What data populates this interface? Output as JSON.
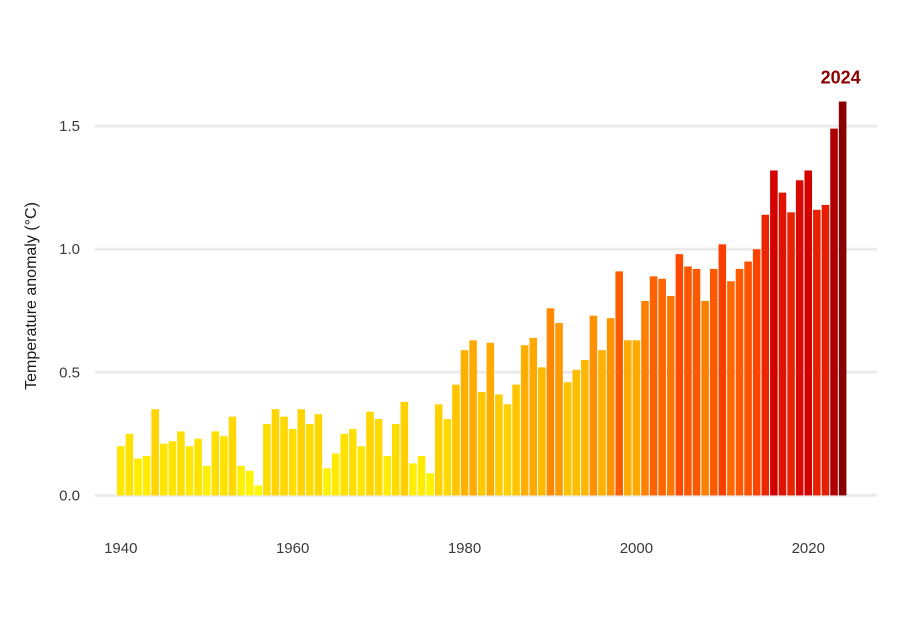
{
  "chart_data": {
    "type": "bar",
    "title": "",
    "xlabel": "",
    "ylabel": "Temperature anomaly (°C)",
    "x": [
      1940,
      1941,
      1942,
      1943,
      1944,
      1945,
      1946,
      1947,
      1948,
      1949,
      1950,
      1951,
      1952,
      1953,
      1954,
      1955,
      1956,
      1957,
      1958,
      1959,
      1960,
      1961,
      1962,
      1963,
      1964,
      1965,
      1966,
      1967,
      1968,
      1969,
      1970,
      1971,
      1972,
      1973,
      1974,
      1975,
      1976,
      1977,
      1978,
      1979,
      1980,
      1981,
      1982,
      1983,
      1984,
      1985,
      1986,
      1987,
      1988,
      1989,
      1990,
      1991,
      1992,
      1993,
      1994,
      1995,
      1996,
      1997,
      1998,
      1999,
      2000,
      2001,
      2002,
      2003,
      2004,
      2005,
      2006,
      2007,
      2008,
      2009,
      2010,
      2011,
      2012,
      2013,
      2014,
      2015,
      2016,
      2017,
      2018,
      2019,
      2020,
      2021,
      2022,
      2023,
      2024
    ],
    "values": [
      0.2,
      0.25,
      0.15,
      0.16,
      0.35,
      0.21,
      0.22,
      0.26,
      0.2,
      0.23,
      0.12,
      0.26,
      0.24,
      0.32,
      0.12,
      0.1,
      0.04,
      0.29,
      0.35,
      0.32,
      0.27,
      0.35,
      0.29,
      0.33,
      0.11,
      0.17,
      0.25,
      0.27,
      0.2,
      0.34,
      0.31,
      0.16,
      0.29,
      0.38,
      0.13,
      0.16,
      0.09,
      0.37,
      0.31,
      0.45,
      0.59,
      0.63,
      0.42,
      0.62,
      0.41,
      0.37,
      0.45,
      0.61,
      0.64,
      0.52,
      0.76,
      0.7,
      0.46,
      0.51,
      0.55,
      0.73,
      0.59,
      0.72,
      0.91,
      0.63,
      0.63,
      0.79,
      0.89,
      0.88,
      0.81,
      0.98,
      0.93,
      0.92,
      0.79,
      0.92,
      1.02,
      0.87,
      0.92,
      0.95,
      1.0,
      1.14,
      1.32,
      1.23,
      1.15,
      1.28,
      1.32,
      1.16,
      1.18,
      1.49,
      1.6
    ],
    "xticks": [
      1940,
      1960,
      1980,
      2000,
      2020
    ],
    "yticks": [
      "0.0",
      "0.5",
      "1.0",
      "1.5"
    ],
    "xlim": [
      1937,
      2028
    ],
    "ylim": [
      -0.1,
      1.85
    ],
    "grid": "horizontal",
    "highlight": {
      "label": "2024",
      "year": 2024,
      "color": "#8b0000"
    },
    "color_scale": [
      "#ffff00",
      "#ffd700",
      "#ffa500",
      "#ff4500",
      "#d40000",
      "#8b0000"
    ]
  }
}
